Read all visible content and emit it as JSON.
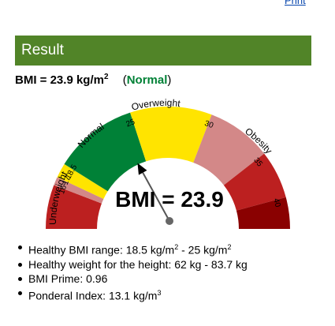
{
  "print_label": "Print",
  "header": {
    "title": "Result"
  },
  "result": {
    "bmi_prefix": "BMI = 23.9 kg/m",
    "bmi_exponent": "2",
    "category_open": "(",
    "category": "Normal",
    "category_close": ")"
  },
  "gauge": {
    "value": 23.9,
    "display": "BMI = 23.9",
    "category_labels": {
      "underweight": "Underweight",
      "normal": "Normal",
      "overweight": "Overweight",
      "obesity": "Obesity"
    },
    "ticks": [
      "16",
      "17",
      "18.5",
      "25",
      "30",
      "35",
      "40"
    ],
    "colors": {
      "severe_thin": "#bc2020",
      "moderate_thin": "#d38888",
      "mild_thin": "#ffe400",
      "normal": "#008137",
      "overweight": "#ffe400",
      "obese1": "#d38888",
      "obese2": "#bc2020",
      "obese3": "#8a0101"
    }
  },
  "facts": [
    {
      "text": "Healthy BMI range: 18.5 kg/m",
      "sup": "2",
      "text2": " - 25 kg/m",
      "sup2": "2"
    },
    {
      "text": "Healthy weight for the height: 62 kg - 83.7 kg"
    },
    {
      "text": "BMI Prime: 0.96"
    },
    {
      "text": "Ponderal Index: 13.1 kg/m",
      "sup": "3"
    }
  ]
}
